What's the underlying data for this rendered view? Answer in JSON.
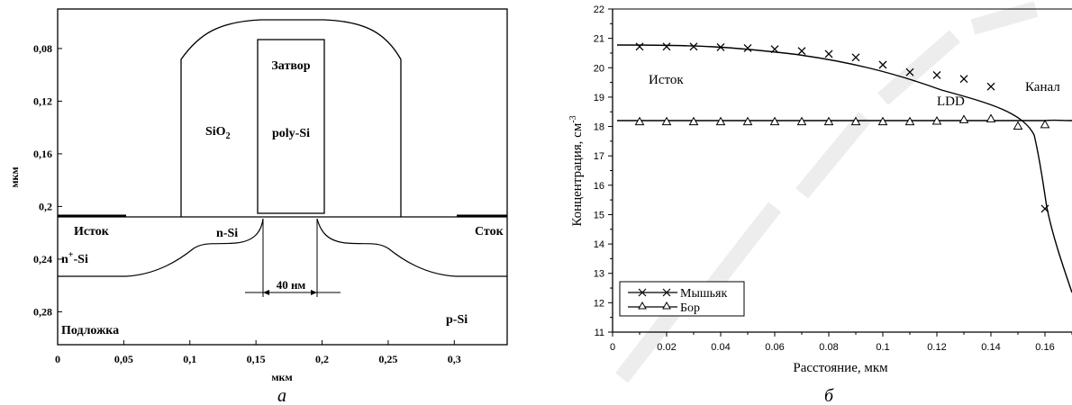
{
  "chart_data": [
    {
      "type": "diagram",
      "panel_label": "а",
      "xlabel": "мкм",
      "ylabel": "мкм",
      "x_ticks": [
        "0",
        "0,05",
        "0,1",
        "0,15",
        "0,2",
        "0,25",
        "0,3"
      ],
      "x_tick_values": [
        0,
        0.05,
        0.1,
        0.15,
        0.2,
        0.25,
        0.3
      ],
      "y_ticks": [
        "0,08",
        "0,12",
        "0,16",
        "0,2",
        "0,24",
        "0,28"
      ],
      "y_tick_values": [
        0.08,
        0.12,
        0.16,
        0.2,
        0.24,
        0.28
      ],
      "xlim": [
        0,
        0.34
      ],
      "ylim": [
        0.05,
        0.305
      ],
      "labels": {
        "gate": "Затвор",
        "gate_material": "poly-Si",
        "oxide": "SiO",
        "oxide_sub": "2",
        "source": "Исток",
        "drain": "Сток",
        "n_si": "n-Si",
        "n_plus": "n",
        "n_plus_sup": "+",
        "n_plus_suffix": "-Si",
        "dimension": "40 нм",
        "substrate": "Подложка",
        "p_si": "p-Si"
      }
    },
    {
      "type": "line",
      "panel_label": "б",
      "xlabel": "Расстояние, мкм",
      "ylabel": "Концентрация, см",
      "ylabel_sup": "-3",
      "xlim": [
        0,
        0.17
      ],
      "ylim": [
        11,
        22
      ],
      "x_ticks": [
        "0",
        "0.02",
        "0.04",
        "0.06",
        "0.08",
        "0.1",
        "0.12",
        "0.14",
        "0.16"
      ],
      "x_tick_values": [
        0,
        0.02,
        0.04,
        0.06,
        0.08,
        0.1,
        0.12,
        0.14,
        0.16
      ],
      "y_ticks": [
        "11",
        "12",
        "13",
        "14",
        "15",
        "16",
        "17",
        "18",
        "19",
        "20",
        "21",
        "22"
      ],
      "y_tick_values": [
        11,
        12,
        13,
        14,
        15,
        16,
        17,
        18,
        19,
        20,
        21,
        22
      ],
      "annotations": [
        "Исток",
        "LDD",
        "Канал"
      ],
      "legend_position": "bottom-left",
      "series": [
        {
          "name": "Мышьяк",
          "marker": "x",
          "x": [
            0.01,
            0.02,
            0.03,
            0.04,
            0.05,
            0.06,
            0.07,
            0.08,
            0.09,
            0.1,
            0.11,
            0.12,
            0.13,
            0.14,
            0.16
          ],
          "y": [
            20.72,
            20.72,
            20.72,
            20.7,
            20.67,
            20.63,
            20.57,
            20.47,
            20.35,
            20.1,
            19.85,
            19.75,
            19.62,
            19.36,
            15.2
          ]
        },
        {
          "name": "Бор",
          "marker": "triangle",
          "x": [
            0.01,
            0.02,
            0.03,
            0.04,
            0.05,
            0.06,
            0.07,
            0.08,
            0.09,
            0.1,
            0.11,
            0.12,
            0.13,
            0.14,
            0.15,
            0.16
          ],
          "y": [
            18.15,
            18.15,
            18.15,
            18.15,
            18.15,
            18.15,
            18.15,
            18.15,
            18.15,
            18.15,
            18.15,
            18.17,
            18.22,
            18.25,
            18.0,
            18.05
          ]
        }
      ]
    }
  ]
}
